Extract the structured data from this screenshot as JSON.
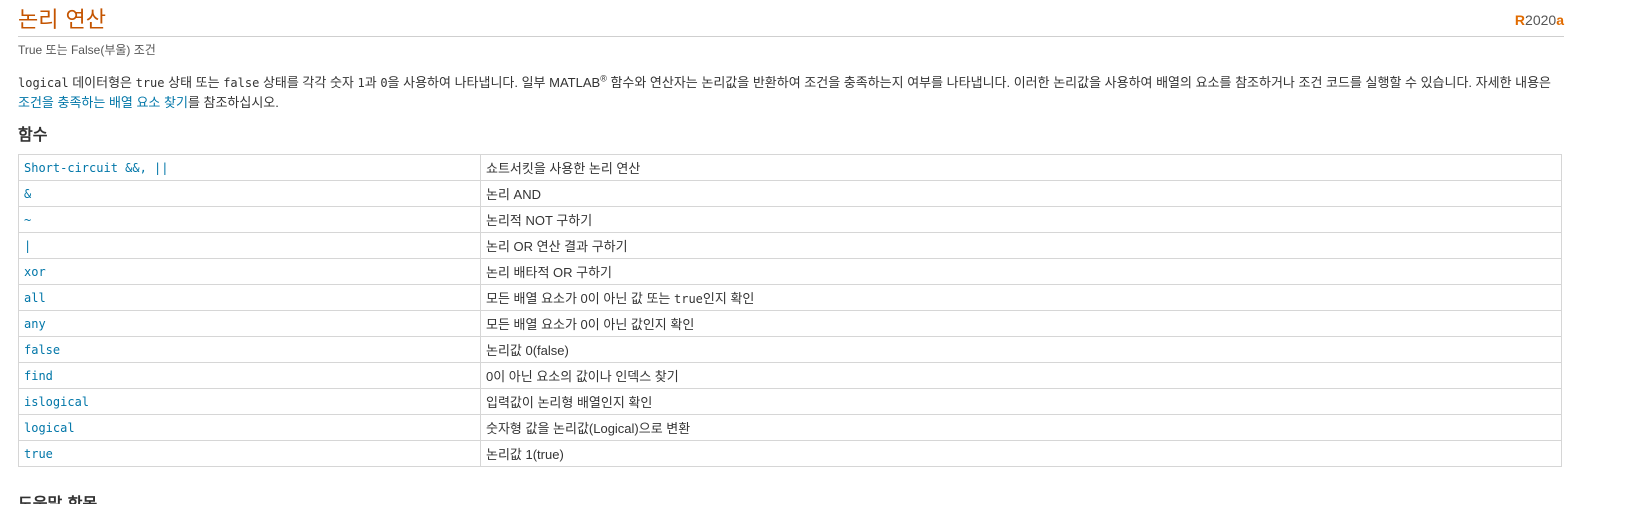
{
  "header": {
    "title": "논리 연산",
    "release_prefix": "R",
    "release_year": "2020",
    "release_suffix": "a"
  },
  "subtitle": "True 또는 False(부울) 조건",
  "description": {
    "code1": "logical",
    "t1": " 데이터형은 ",
    "code2": "true",
    "t2": " 상태 또는 ",
    "code3": "false",
    "t3": " 상태를 각각 숫자 ",
    "code4": "1",
    "t4": "과 ",
    "code5": "0",
    "t5": "을 사용하여 나타냅니다. 일부 MATLAB",
    "reg": "®",
    "t6": " 함수와 연산자는 논리값을 반환하여 조건을 충족하는지 여부를 나타냅니다. 이러한 논리값을 사용하여 배열의 요소를 참조하거나 조건 코드를 실행할 수 있습니다. 자세한 내용은 ",
    "link": "조건을 충족하는 배열 요소 찾기",
    "t7": "를 참조하십시오."
  },
  "functions_heading": "함수",
  "functions": [
    {
      "name": "Short-circuit &&, ||",
      "desc": "쇼트서킷을 사용한 논리 연산"
    },
    {
      "name": "&",
      "desc": "논리 AND"
    },
    {
      "name": "~",
      "desc": "논리적 NOT 구하기"
    },
    {
      "name": "|",
      "desc": "논리 OR 연산 결과 구하기"
    },
    {
      "name": "xor",
      "desc": "논리 배타적 OR 구하기"
    },
    {
      "name": "all",
      "desc_pre": "모든 배열 요소가 0이 아닌 값 또는 ",
      "desc_code": "true",
      "desc_post": "인지 확인"
    },
    {
      "name": "any",
      "desc": "모든 배열 요소가 0이 아닌 값인지 확인"
    },
    {
      "name": "false",
      "desc": "논리값 0(false)"
    },
    {
      "name": "find",
      "desc": "0이 아닌 요소의 값이나 인덱스 찾기"
    },
    {
      "name": "islogical",
      "desc": "입력값이 논리형 배열인지 확인"
    },
    {
      "name": "logical",
      "desc": "숫자형 값을 논리값(Logical)으로 변환"
    },
    {
      "name": "true",
      "desc": "논리값 1(true)"
    }
  ],
  "next_heading": "도움말 항목",
  "colors": {
    "title": "#c45400",
    "link": "#0076a8",
    "badge_accent": "#e16b00",
    "border": "#d6d6d6"
  }
}
